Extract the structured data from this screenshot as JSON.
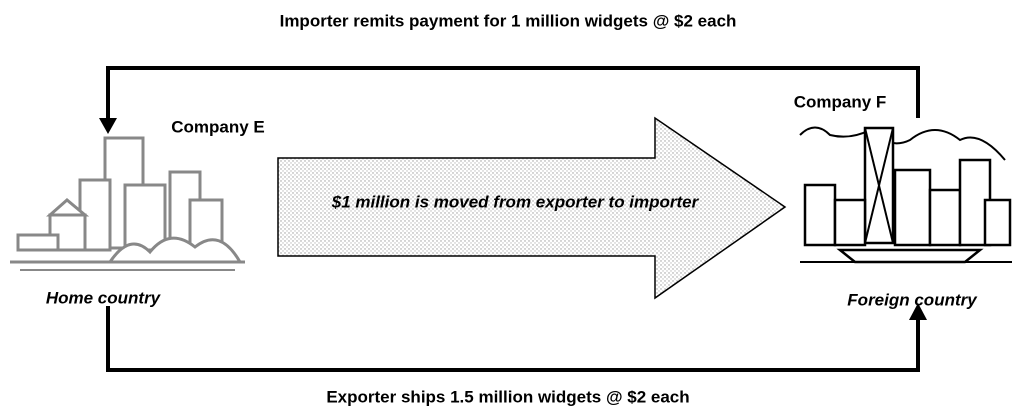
{
  "top_label": "Importer remits payment for 1 million widgets @ $2 each",
  "bottom_label": "Exporter ships 1.5 million widgets @ $2 each",
  "arrow_label": "$1 million is moved from exporter to importer",
  "nodes": [
    {
      "label": "Company E",
      "caption": "Home country"
    },
    {
      "label": "Company F",
      "caption": "Foreign country"
    }
  ]
}
